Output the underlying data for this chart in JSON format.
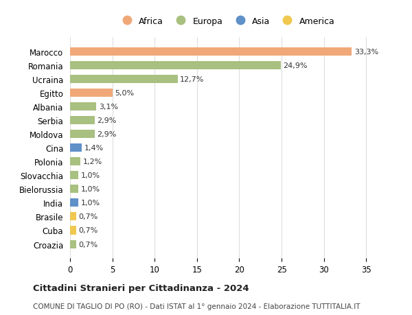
{
  "countries": [
    "Marocco",
    "Romania",
    "Ucraina",
    "Egitto",
    "Albania",
    "Serbia",
    "Moldova",
    "Cina",
    "Polonia",
    "Slovacchia",
    "Bielorussia",
    "India",
    "Brasile",
    "Cuba",
    "Croazia"
  ],
  "values": [
    33.3,
    24.9,
    12.7,
    5.0,
    3.1,
    2.9,
    2.9,
    1.4,
    1.2,
    1.0,
    1.0,
    1.0,
    0.7,
    0.7,
    0.7
  ],
  "labels": [
    "33,3%",
    "24,9%",
    "12,7%",
    "5,0%",
    "3,1%",
    "2,9%",
    "2,9%",
    "1,4%",
    "1,2%",
    "1,0%",
    "1,0%",
    "1,0%",
    "0,7%",
    "0,7%",
    "0,7%"
  ],
  "continents": [
    "Africa",
    "Europa",
    "Europa",
    "Africa",
    "Europa",
    "Europa",
    "Europa",
    "Asia",
    "Europa",
    "Europa",
    "Europa",
    "Asia",
    "America",
    "America",
    "Europa"
  ],
  "colors": {
    "Africa": "#F0A878",
    "Europa": "#A8C080",
    "Asia": "#6090C8",
    "America": "#F0C850"
  },
  "legend_order": [
    "Africa",
    "Europa",
    "Asia",
    "America"
  ],
  "title": "Cittadini Stranieri per Cittadinanza - 2024",
  "subtitle": "COMUNE DI TAGLIO DI PO (RO) - Dati ISTAT al 1° gennaio 2024 - Elaborazione TUTTITALIA.IT",
  "xlim": [
    0,
    37
  ],
  "xticks": [
    0,
    5,
    10,
    15,
    20,
    25,
    30,
    35
  ],
  "background_color": "#ffffff",
  "grid_color": "#dddddd"
}
